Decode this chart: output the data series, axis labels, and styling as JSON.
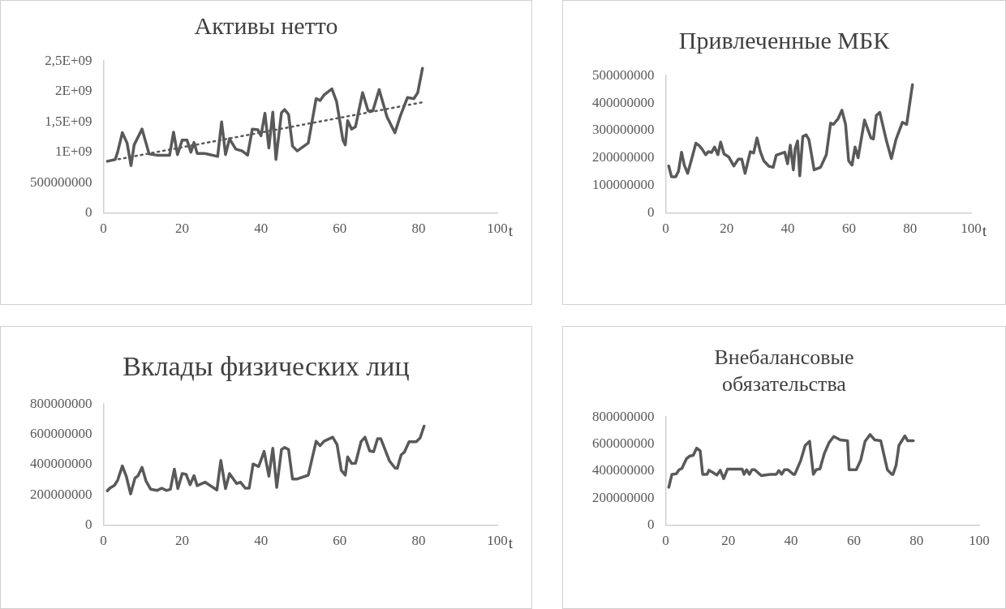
{
  "chart_data": [
    {
      "type": "line",
      "title": "Активы нетто",
      "xlabel": "t",
      "xlim": [
        0,
        100
      ],
      "xticks": [
        0,
        20,
        40,
        60,
        80,
        100
      ],
      "ylim": [
        0,
        2500000000
      ],
      "yticks": [
        0,
        500000000,
        {
          "value": 1000000000,
          "label": "1E+09"
        },
        {
          "value": 1500000000,
          "label": "1,5E+09"
        },
        {
          "value": 2000000000,
          "label": "2E+09"
        },
        {
          "value": 2500000000,
          "label": "2,5E+09"
        }
      ],
      "series": [
        {
          "color": "#595959",
          "line_style": "solid",
          "x": [
            1,
            3,
            3.6,
            4.8,
            6,
            7,
            7.8,
            9.8,
            11.6,
            13.6,
            16.8,
            17.8,
            18.8,
            20,
            21.2,
            22.2,
            23,
            23.8,
            25.6,
            29,
            30,
            31,
            32,
            33.6,
            35.2,
            36.6,
            37.8,
            39.2,
            40,
            41,
            42,
            43,
            43.8,
            45.2,
            46,
            47,
            48,
            49.2,
            52,
            54,
            55,
            56,
            58,
            59.2,
            60.8,
            61.4,
            62,
            63,
            64,
            65.8,
            67.2,
            68.4,
            70,
            72,
            74,
            75.4,
            77.2,
            78.8,
            79.8,
            81
          ],
          "values": [
            850000000,
            880000000,
            1000000000,
            1320000000,
            1150000000,
            780000000,
            1120000000,
            1380000000,
            970000000,
            950000000,
            950000000,
            1330000000,
            960000000,
            1200000000,
            1200000000,
            1000000000,
            1160000000,
            980000000,
            980000000,
            930000000,
            1500000000,
            960000000,
            1220000000,
            1050000000,
            1020000000,
            950000000,
            1380000000,
            1370000000,
            1270000000,
            1640000000,
            1070000000,
            1660000000,
            880000000,
            1650000000,
            1700000000,
            1620000000,
            1100000000,
            1020000000,
            1150000000,
            1880000000,
            1850000000,
            1940000000,
            2040000000,
            1830000000,
            1200000000,
            1120000000,
            1520000000,
            1380000000,
            1420000000,
            1980000000,
            1680000000,
            1680000000,
            2030000000,
            1580000000,
            1320000000,
            1600000000,
            1900000000,
            1880000000,
            1980000000,
            2380000000
          ]
        },
        {
          "type": "line",
          "color": "#595959",
          "line_style": "dotted",
          "x": [
            1,
            81
          ],
          "values": [
            850000000,
            1820000000
          ]
        }
      ]
    },
    {
      "type": "line",
      "title": "Привлеченные МБК",
      "xlabel": "t",
      "xlim": [
        0,
        100
      ],
      "xticks": [
        0,
        20,
        40,
        60,
        80,
        100
      ],
      "ylim": [
        0,
        500000000
      ],
      "yticks": [
        0,
        100000000,
        200000000,
        300000000,
        400000000,
        500000000
      ],
      "series": [
        {
          "color": "#595959",
          "line_style": "solid",
          "x": [
            1,
            1.9,
            3.3,
            4.2,
            5.2,
            6.1,
            7.2,
            8.5,
            9.9,
            11,
            12,
            13.1,
            14,
            15,
            16,
            17.1,
            18,
            19.1,
            20.7,
            22.3,
            23.8,
            24.9,
            26,
            27.7,
            28.8,
            29.9,
            31,
            32.1,
            33.8,
            35.2,
            36.2,
            39,
            39.9,
            40.8,
            41.8,
            42.4,
            43.2,
            43.9,
            44.9,
            46,
            46.9,
            48.6,
            50.7,
            52.6,
            54,
            54.9,
            56.5,
            57.7,
            58.9,
            59.9,
            61,
            62,
            63,
            65.1,
            67.2,
            68,
            69,
            70.1,
            72.3,
            73.9,
            75.4,
            77.5,
            78.9,
            80.8
          ],
          "values": [
            171000000,
            132000000,
            132000000,
            152000000,
            221000000,
            174000000,
            144000000,
            196000000,
            254000000,
            245000000,
            231000000,
            212000000,
            223000000,
            220000000,
            240000000,
            212000000,
            258000000,
            215000000,
            203000000,
            171000000,
            196000000,
            196000000,
            144000000,
            223000000,
            218000000,
            273000000,
            223000000,
            190000000,
            170000000,
            166000000,
            210000000,
            221000000,
            179000000,
            247000000,
            157000000,
            234000000,
            262000000,
            135000000,
            278000000,
            284000000,
            267000000,
            157000000,
            166000000,
            212000000,
            327000000,
            322000000,
            344000000,
            374000000,
            322000000,
            190000000,
            174000000,
            240000000,
            201000000,
            338000000,
            273000000,
            269000000,
            355000000,
            366000000,
            262000000,
            198000000,
            267000000,
            330000000,
            322000000,
            467000000
          ]
        }
      ]
    },
    {
      "type": "line",
      "title": "Вклады физических лиц",
      "xlabel": "t",
      "xlim": [
        0,
        100
      ],
      "xticks": [
        0,
        20,
        40,
        60,
        80,
        100
      ],
      "ylim": [
        0,
        800000000
      ],
      "yticks": [
        0,
        200000000,
        400000000,
        600000000,
        800000000
      ],
      "series": [
        {
          "color": "#595959",
          "line_style": "solid",
          "x": [
            1,
            1.6,
            2.8,
            3.6,
            4.8,
            5.8,
            6.9,
            8,
            8.8,
            9.8,
            10.8,
            12,
            13.6,
            14.8,
            16,
            17,
            18,
            18.9,
            20,
            21,
            22,
            23,
            23.8,
            25.8,
            28.8,
            29.8,
            31,
            32,
            33.8,
            34.8,
            36,
            37,
            38,
            39.4,
            40.8,
            42,
            43,
            44,
            45.2,
            46,
            47,
            48,
            49.2,
            52,
            54,
            55,
            56,
            58.2,
            59.3,
            60.4,
            61.4,
            62,
            63,
            64,
            65.4,
            66.4,
            67.6,
            68.6,
            69.6,
            70.4,
            72.6,
            74,
            74.6,
            75.6,
            76.4,
            77.6,
            79.4,
            80.4,
            81.4
          ],
          "values": [
            227000000,
            244000000,
            263000000,
            296000000,
            391000000,
            323000000,
            206000000,
            310000000,
            327000000,
            382000000,
            292000000,
            237000000,
            229000000,
            244000000,
            229000000,
            237000000,
            370000000,
            241000000,
            341000000,
            335000000,
            267000000,
            327000000,
            261000000,
            284000000,
            232000000,
            427000000,
            241000000,
            341000000,
            275000000,
            284000000,
            244000000,
            244000000,
            404000000,
            387000000,
            487000000,
            323000000,
            508000000,
            249000000,
            499000000,
            513000000,
            499000000,
            305000000,
            305000000,
            330000000,
            554000000,
            525000000,
            554000000,
            581000000,
            533000000,
            361000000,
            330000000,
            451000000,
            408000000,
            409000000,
            551000000,
            581000000,
            490000000,
            485000000,
            571000000,
            571000000,
            425000000,
            378000000,
            375000000,
            465000000,
            482000000,
            551000000,
            551000000,
            576000000,
            654000000
          ]
        }
      ]
    },
    {
      "type": "line",
      "title": "Внебалансовые обязательства",
      "xlim": [
        0,
        100
      ],
      "xticks": [
        0,
        20,
        40,
        60,
        80,
        100
      ],
      "ylim": [
        0,
        800000000
      ],
      "yticks": [
        0,
        200000000,
        400000000,
        600000000,
        800000000
      ],
      "series": [
        {
          "color": "#595959",
          "line_style": "solid",
          "x": [
            1,
            2,
            3.4,
            4.3,
            5.2,
            6.6,
            7.6,
            8.8,
            9.9,
            11,
            11.8,
            13.2,
            13.8,
            15,
            16.3,
            17.4,
            18.5,
            19.7,
            24.4,
            25,
            25.8,
            26.7,
            27.5,
            28.4,
            30.5,
            33.3,
            35.3,
            36.1,
            37,
            37.9,
            39,
            40.7,
            41.2,
            43.1,
            44.5,
            45.9,
            47.1,
            48,
            49.2,
            50.6,
            52.1,
            53.6,
            55.7,
            58,
            58.5,
            60.8,
            62.2,
            63.6,
            65.2,
            66.7,
            68.6,
            70.7,
            72.1,
            72.5,
            73.5,
            74.4,
            76.3,
            77.2,
            79
          ],
          "values": [
            280000000,
            376000000,
            380000000,
            410000000,
            420000000,
            490000000,
            510000000,
            516000000,
            570000000,
            550000000,
            376000000,
            376000000,
            406000000,
            390000000,
            370000000,
            406000000,
            344000000,
            414000000,
            414000000,
            376000000,
            410000000,
            376000000,
            410000000,
            410000000,
            366000000,
            376000000,
            376000000,
            404000000,
            376000000,
            410000000,
            410000000,
            376000000,
            376000000,
            480000000,
            590000000,
            620000000,
            376000000,
            410000000,
            416000000,
            530000000,
            610000000,
            656000000,
            630000000,
            624000000,
            410000000,
            410000000,
            480000000,
            620000000,
            670000000,
            630000000,
            624000000,
            410000000,
            376000000,
            376000000,
            444000000,
            590000000,
            660000000,
            624000000,
            624000000
          ]
        }
      ]
    }
  ]
}
